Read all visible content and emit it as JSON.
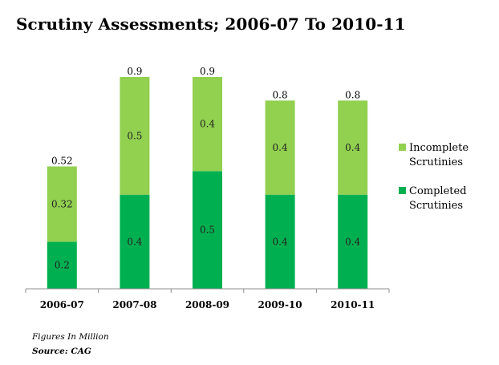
{
  "title": "Scrutiny Assessments; 2006-07 To 2010-11",
  "footnote": "Figures In Million",
  "source": "Source: CAG",
  "chart_data": {
    "type": "bar",
    "stacked": true,
    "categories": [
      "2006-07",
      "2007-08",
      "2008-09",
      "2009-10",
      "2010-11"
    ],
    "series": [
      {
        "name": "Completed Scrutinies",
        "values": [
          0.2,
          0.4,
          0.5,
          0.4,
          0.4
        ],
        "labels": [
          "0.2",
          "0.4",
          "0.5",
          "0.4",
          "0.4"
        ],
        "color": "#00b050"
      },
      {
        "name": "Incomplete Scrutinies",
        "values": [
          0.32,
          0.5,
          0.4,
          0.4,
          0.4
        ],
        "labels": [
          "0.32",
          "0.5",
          "0.4",
          "0.4",
          "0.4"
        ],
        "color": "#92d050"
      }
    ],
    "totals": [
      "0.52",
      "0.9",
      "0.9",
      "0.8",
      "0.8"
    ],
    "ylim": [
      0,
      0.9
    ],
    "legend_position": "right",
    "grid": false
  }
}
